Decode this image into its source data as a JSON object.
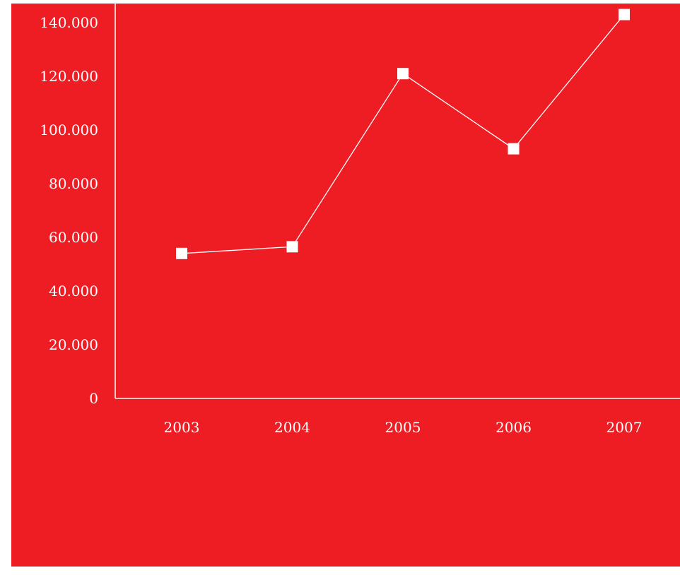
{
  "chart_data": {
    "type": "line",
    "categories": [
      "2003",
      "2004",
      "2005",
      "2006",
      "2007"
    ],
    "series": [
      {
        "values": [
          54000,
          56500,
          121000,
          93000,
          143000
        ]
      }
    ],
    "y_ticks": [
      "0",
      "20.000",
      "40.000",
      "60.000",
      "80.000",
      "100.000",
      "120.000",
      "140.000"
    ],
    "ylim": [
      0,
      145000
    ],
    "title": "",
    "xlabel": "",
    "ylabel": "",
    "grid": false,
    "marker": "square",
    "colors": {
      "background": "#EE1D24",
      "line": "#FFFFFF",
      "axis": "#FFFFFF",
      "text": "#FFFFFF"
    }
  }
}
